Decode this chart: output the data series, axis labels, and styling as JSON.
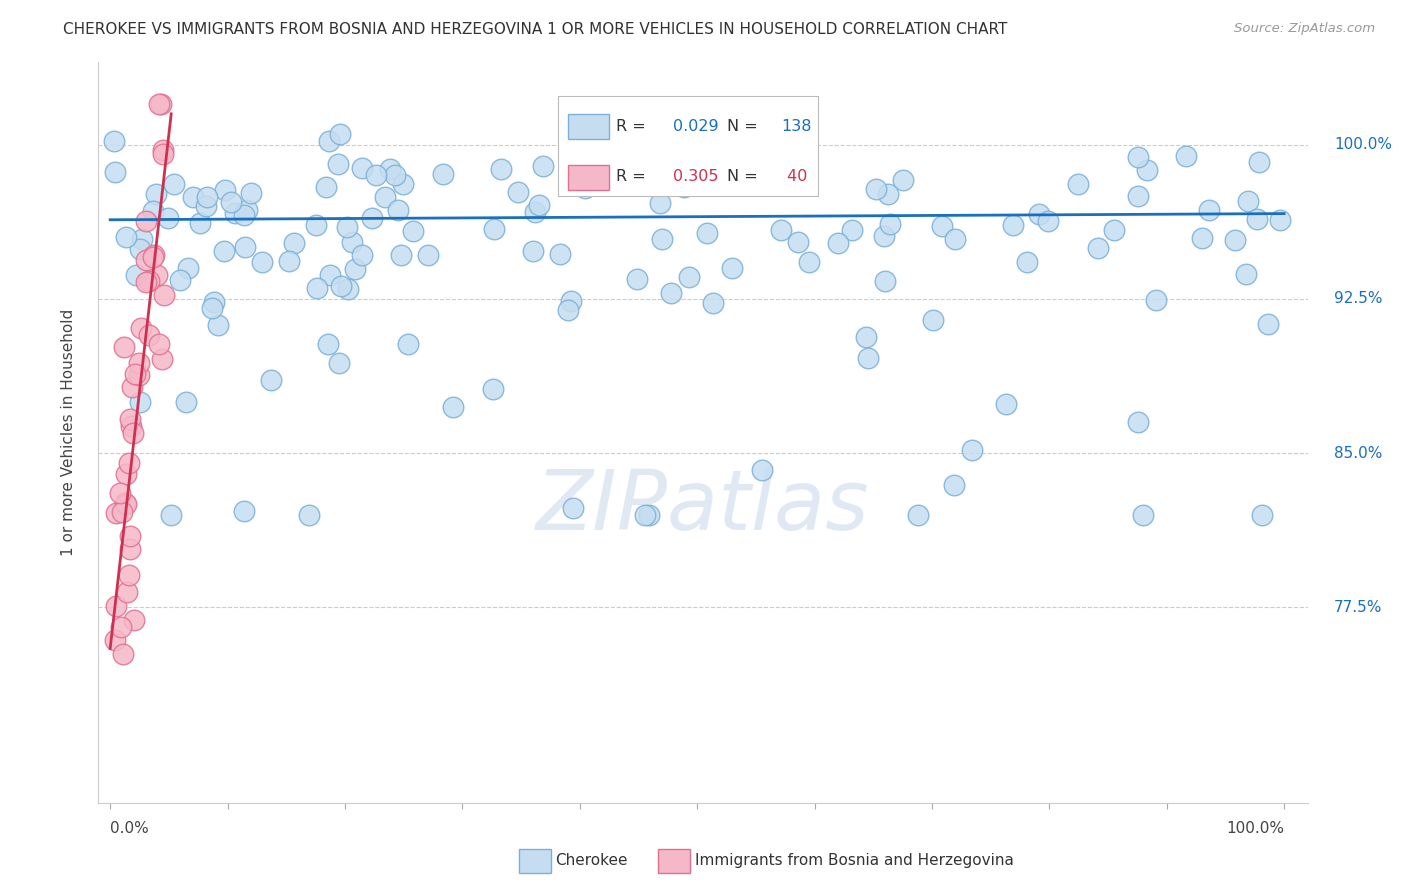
{
  "title": "CHEROKEE VS IMMIGRANTS FROM BOSNIA AND HERZEGOVINA 1 OR MORE VEHICLES IN HOUSEHOLD CORRELATION CHART",
  "source": "Source: ZipAtlas.com",
  "ylabel": "1 or more Vehicles in Household",
  "ytick_labels": [
    "100.0%",
    "92.5%",
    "85.0%",
    "77.5%"
  ],
  "ytick_values": [
    1.0,
    0.925,
    0.85,
    0.775
  ],
  "xlim": [
    0.0,
    1.0
  ],
  "ylim": [
    0.68,
    1.04
  ],
  "blue_dot_face": "#c5ddf0",
  "blue_dot_edge": "#7ab0d8",
  "blue_line_color": "#1a6fbe",
  "pink_dot_face": "#f5b8c8",
  "pink_dot_edge": "#e07090",
  "pink_line_color": "#d03050",
  "R_blue": 0.029,
  "N_blue": 138,
  "R_pink": 0.305,
  "N_pink": 40,
  "watermark": "ZIPatlas",
  "background_color": "#ffffff",
  "grid_color": "#dddddd",
  "legend_blue_label": "Cherokee",
  "legend_pink_label": "Immigrants from Bosnia and Herzegovina"
}
